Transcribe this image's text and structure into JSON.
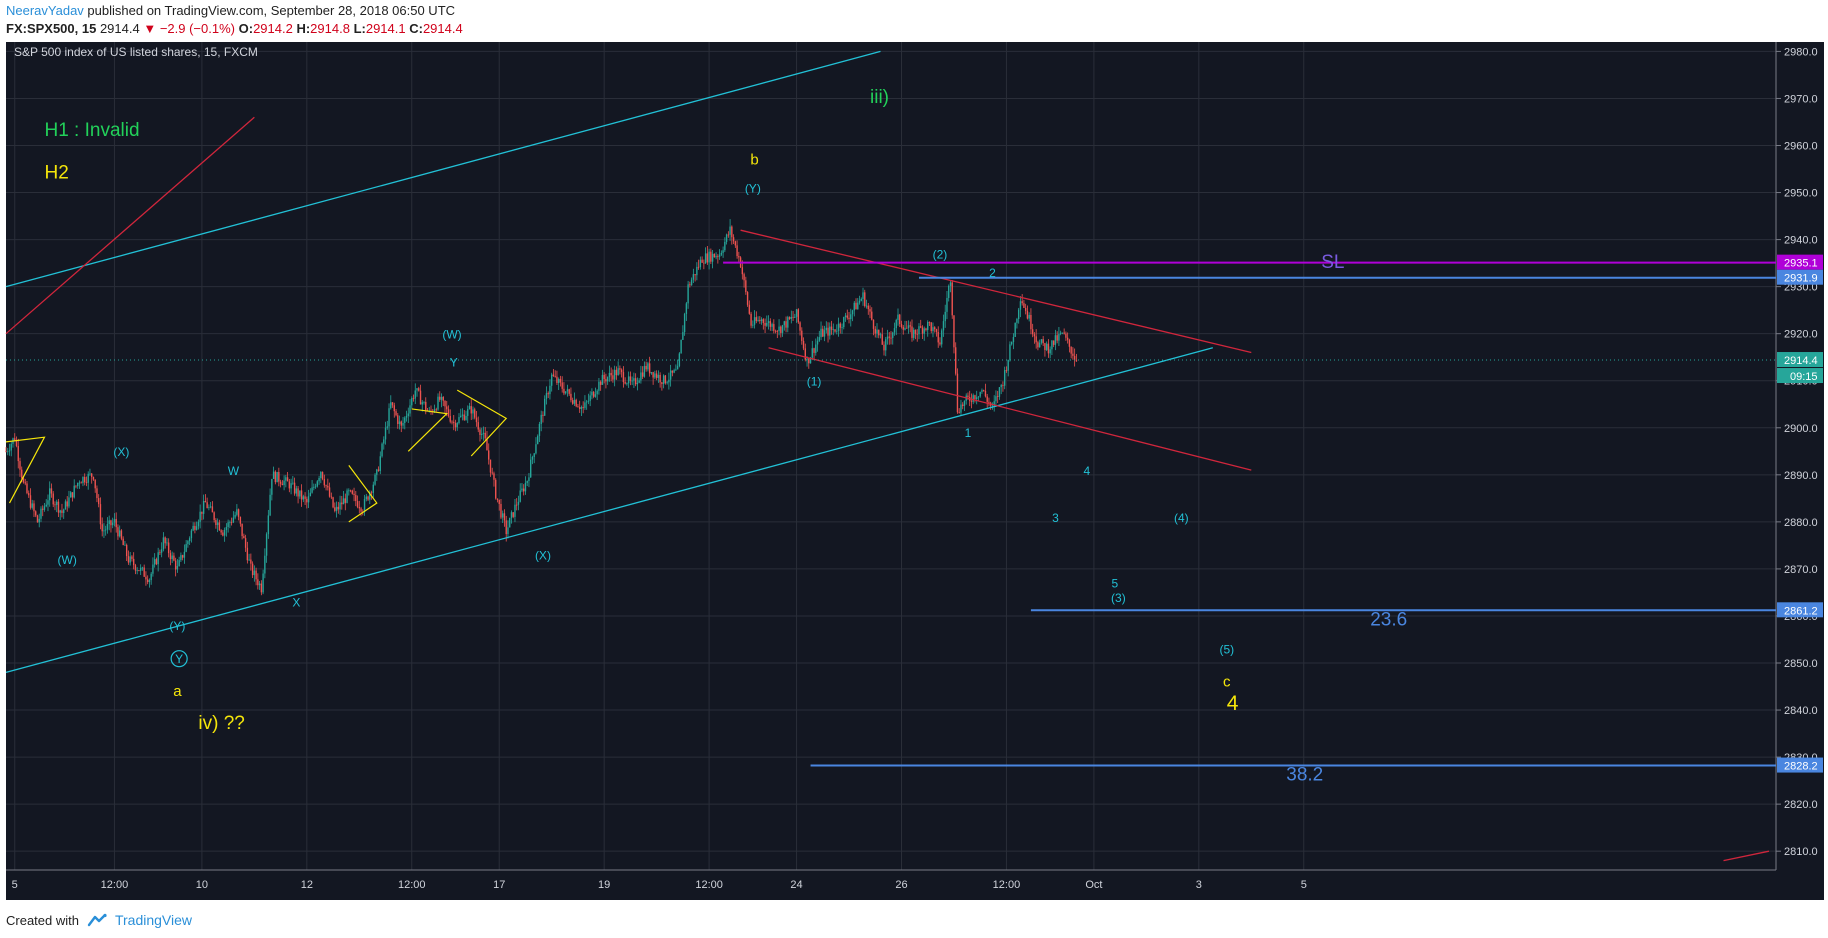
{
  "header": {
    "author": "NeeravYadav",
    "published": " published on TradingView.com, September 28, 2018 06:50 UTC",
    "symbol": "FX:SPX500, 15",
    "last": "2914.4",
    "change": "▼ −2.9 (−0.1%)",
    "o_label": "O:",
    "o": "2914.2",
    "h_label": "H:",
    "h": "2914.8",
    "l_label": "L:",
    "l": "2914.1",
    "c_label": "C:",
    "c": "2914.4"
  },
  "footer": {
    "created_with": "Created with",
    "brand": "TradingView"
  },
  "colors": {
    "background": "#131722",
    "grid": "#2a2e39",
    "axis_text": "#d1d4dc",
    "cyan": "#22c1d6",
    "red": "#d0263c",
    "yellow": "#f5e60a",
    "green": "#22d15a",
    "purple": "#b000d8",
    "blue": "#4a86e0",
    "sl_label": "#7a5be0",
    "candle_up": "#26a69a",
    "candle_down": "#ef5350"
  },
  "chart_data": {
    "type": "candlestick",
    "title": "S&P 500 index of US listed shares, 15, FXCM",
    "ylim": [
      2806,
      2982
    ],
    "y_ticks": [
      2810,
      2820,
      2830,
      2840,
      2850,
      2860,
      2870,
      2880,
      2890,
      2900,
      2910,
      2920,
      2930,
      2940,
      2950,
      2960,
      2970,
      2980
    ],
    "x_ticks": [
      {
        "t": 5,
        "label": "5"
      },
      {
        "t": 62,
        "label": "12:00"
      },
      {
        "t": 112,
        "label": "10"
      },
      {
        "t": 172,
        "label": "12"
      },
      {
        "t": 232,
        "label": "12:00"
      },
      {
        "t": 282,
        "label": "17"
      },
      {
        "t": 342,
        "label": "19"
      },
      {
        "t": 402,
        "label": "12:00"
      },
      {
        "t": 452,
        "label": "24"
      },
      {
        "t": 512,
        "label": "26"
      },
      {
        "t": 572,
        "label": "12:00"
      },
      {
        "t": 622,
        "label": "Oct"
      },
      {
        "t": 682,
        "label": "3"
      },
      {
        "t": 742,
        "label": "5"
      }
    ],
    "price_path": [
      [
        0,
        2895
      ],
      [
        5,
        2898
      ],
      [
        10,
        2888
      ],
      [
        18,
        2880
      ],
      [
        25,
        2886
      ],
      [
        32,
        2882
      ],
      [
        42,
        2889
      ],
      [
        50,
        2890
      ],
      [
        55,
        2878
      ],
      [
        62,
        2880
      ],
      [
        70,
        2872
      ],
      [
        82,
        2868
      ],
      [
        90,
        2876
      ],
      [
        98,
        2870
      ],
      [
        106,
        2878
      ],
      [
        114,
        2884
      ],
      [
        124,
        2878
      ],
      [
        132,
        2882
      ],
      [
        140,
        2870
      ],
      [
        146,
        2866
      ],
      [
        152,
        2890
      ],
      [
        162,
        2888
      ],
      [
        172,
        2884
      ],
      [
        180,
        2891
      ],
      [
        188,
        2882
      ],
      [
        196,
        2886
      ],
      [
        204,
        2883
      ],
      [
        212,
        2890
      ],
      [
        220,
        2905
      ],
      [
        226,
        2900
      ],
      [
        234,
        2908
      ],
      [
        242,
        2903
      ],
      [
        248,
        2906
      ],
      [
        256,
        2901
      ],
      [
        266,
        2904
      ],
      [
        274,
        2897
      ],
      [
        280,
        2886
      ],
      [
        286,
        2878
      ],
      [
        292,
        2884
      ],
      [
        298,
        2889
      ],
      [
        306,
        2902
      ],
      [
        312,
        2911
      ],
      [
        322,
        2907
      ],
      [
        330,
        2904
      ],
      [
        340,
        2910
      ],
      [
        350,
        2912
      ],
      [
        358,
        2909
      ],
      [
        366,
        2913
      ],
      [
        376,
        2910
      ],
      [
        384,
        2912
      ],
      [
        390,
        2930
      ],
      [
        398,
        2936
      ],
      [
        408,
        2937
      ],
      [
        414,
        2942
      ],
      [
        420,
        2935
      ],
      [
        426,
        2922
      ],
      [
        432,
        2923
      ],
      [
        442,
        2921
      ],
      [
        452,
        2924
      ],
      [
        458,
        2914
      ],
      [
        466,
        2920
      ],
      [
        474,
        2921
      ],
      [
        482,
        2924
      ],
      [
        490,
        2928
      ],
      [
        496,
        2922
      ],
      [
        502,
        2917
      ],
      [
        510,
        2923
      ],
      [
        518,
        2920
      ],
      [
        528,
        2922
      ],
      [
        534,
        2918
      ],
      [
        540,
        2932
      ],
      [
        544,
        2904
      ],
      [
        550,
        2906
      ],
      [
        558,
        2908
      ],
      [
        564,
        2904
      ],
      [
        570,
        2910
      ],
      [
        576,
        2920
      ],
      [
        580,
        2928
      ],
      [
        584,
        2924
      ],
      [
        590,
        2918
      ],
      [
        596,
        2917
      ],
      [
        604,
        2920
      ],
      [
        612,
        2914.4
      ]
    ],
    "horizontal_lines": [
      {
        "y": 2935.1,
        "color": "purple",
        "t_start": 410,
        "label": "2935.1"
      },
      {
        "y": 2931.9,
        "color": "blue",
        "t_start": 522,
        "label": "2931.9"
      },
      {
        "y": 2861.2,
        "color": "blue",
        "t_start": 586,
        "label": "2861.2"
      },
      {
        "y": 2828.2,
        "color": "blue",
        "t_start": 460,
        "label": "2828.2"
      }
    ],
    "last_price": {
      "y": 2914.4,
      "label": "2914.4",
      "countdown": "09:15"
    },
    "trend_lines": [
      {
        "color": "cyan",
        "from": [
          0,
          2930
        ],
        "to": [
          500,
          2980
        ]
      },
      {
        "color": "cyan",
        "from": [
          0,
          2848
        ],
        "to": [
          690,
          2917
        ]
      },
      {
        "color": "red",
        "from": [
          0,
          2920
        ],
        "to": [
          142,
          2966
        ]
      },
      {
        "color": "red",
        "from": [
          420,
          2942
        ],
        "to": [
          712,
          2916
        ]
      },
      {
        "color": "red",
        "from": [
          436,
          2917
        ],
        "to": [
          712,
          2891
        ]
      },
      {
        "color": "red",
        "from": [
          982,
          2808
        ],
        "to": [
          1008,
          2810
        ]
      }
    ],
    "annotations": [
      {
        "text": "H1 : Invalid",
        "t": 22,
        "y": 2962,
        "color": "green",
        "size": 19
      },
      {
        "text": "H2",
        "t": 22,
        "y": 2953,
        "color": "yellow",
        "size": 19
      },
      {
        "text": "iii)",
        "t": 494,
        "y": 2969,
        "color": "green",
        "size": 19
      },
      {
        "text": "b",
        "t": 428,
        "y": 2956,
        "color": "yellow",
        "size": 15
      },
      {
        "text": "(Y)",
        "t": 427,
        "y": 2950,
        "color": "cyan",
        "size": 12
      },
      {
        "text": "(W)",
        "t": 255,
        "y": 2919,
        "color": "cyan",
        "size": 12
      },
      {
        "text": "Y",
        "t": 256,
        "y": 2913,
        "color": "cyan",
        "size": 12
      },
      {
        "text": "(X)",
        "t": 66,
        "y": 2894,
        "color": "cyan",
        "size": 12
      },
      {
        "text": "W",
        "t": 130,
        "y": 2890,
        "color": "cyan",
        "size": 12
      },
      {
        "text": "(W)",
        "t": 35,
        "y": 2871,
        "color": "cyan",
        "size": 12
      },
      {
        "text": "X",
        "t": 166,
        "y": 2862,
        "color": "cyan",
        "size": 12
      },
      {
        "text": "(X)",
        "t": 307,
        "y": 2872,
        "color": "cyan",
        "size": 12
      },
      {
        "text": "(Y)",
        "t": 98,
        "y": 2857,
        "color": "cyan",
        "size": 12
      },
      {
        "text": "Y",
        "t": 99,
        "y": 2850,
        "color": "cyan",
        "size": 12
      },
      {
        "text": "a",
        "t": 98,
        "y": 2843,
        "color": "yellow",
        "size": 15
      },
      {
        "text": "iv)   ??",
        "t": 110,
        "y": 2836,
        "color": "yellow",
        "size": 19
      },
      {
        "text": "(2)",
        "t": 534,
        "y": 2936,
        "color": "cyan",
        "size": 12
      },
      {
        "text": "2",
        "t": 564,
        "y": 2932,
        "color": "cyan",
        "size": 12
      },
      {
        "text": "SL",
        "t": 752,
        "y": 2934,
        "color": "sl_label",
        "size": 19
      },
      {
        "text": "(1)",
        "t": 462,
        "y": 2909,
        "color": "cyan",
        "size": 12
      },
      {
        "text": "1",
        "t": 550,
        "y": 2898,
        "color": "cyan",
        "size": 12
      },
      {
        "text": "4",
        "t": 618,
        "y": 2890,
        "color": "cyan",
        "size": 12
      },
      {
        "text": "3",
        "t": 600,
        "y": 2880,
        "color": "cyan",
        "size": 12
      },
      {
        "text": "(4)",
        "t": 672,
        "y": 2880,
        "color": "cyan",
        "size": 12
      },
      {
        "text": "5",
        "t": 634,
        "y": 2866,
        "color": "cyan",
        "size": 12
      },
      {
        "text": "(3)",
        "t": 636,
        "y": 2863,
        "color": "cyan",
        "size": 12
      },
      {
        "text": "23.6",
        "t": 780,
        "y": 2858,
        "color": "blue",
        "size": 19
      },
      {
        "text": "(5)",
        "t": 698,
        "y": 2852,
        "color": "cyan",
        "size": 12
      },
      {
        "text": "c",
        "t": 698,
        "y": 2845,
        "color": "yellow",
        "size": 15
      },
      {
        "text": "4",
        "t": 698,
        "y": 2840,
        "color": "yellow",
        "size": 21
      },
      {
        "text": "38.2",
        "t": 732,
        "y": 2825,
        "color": "blue",
        "size": 19
      }
    ]
  }
}
